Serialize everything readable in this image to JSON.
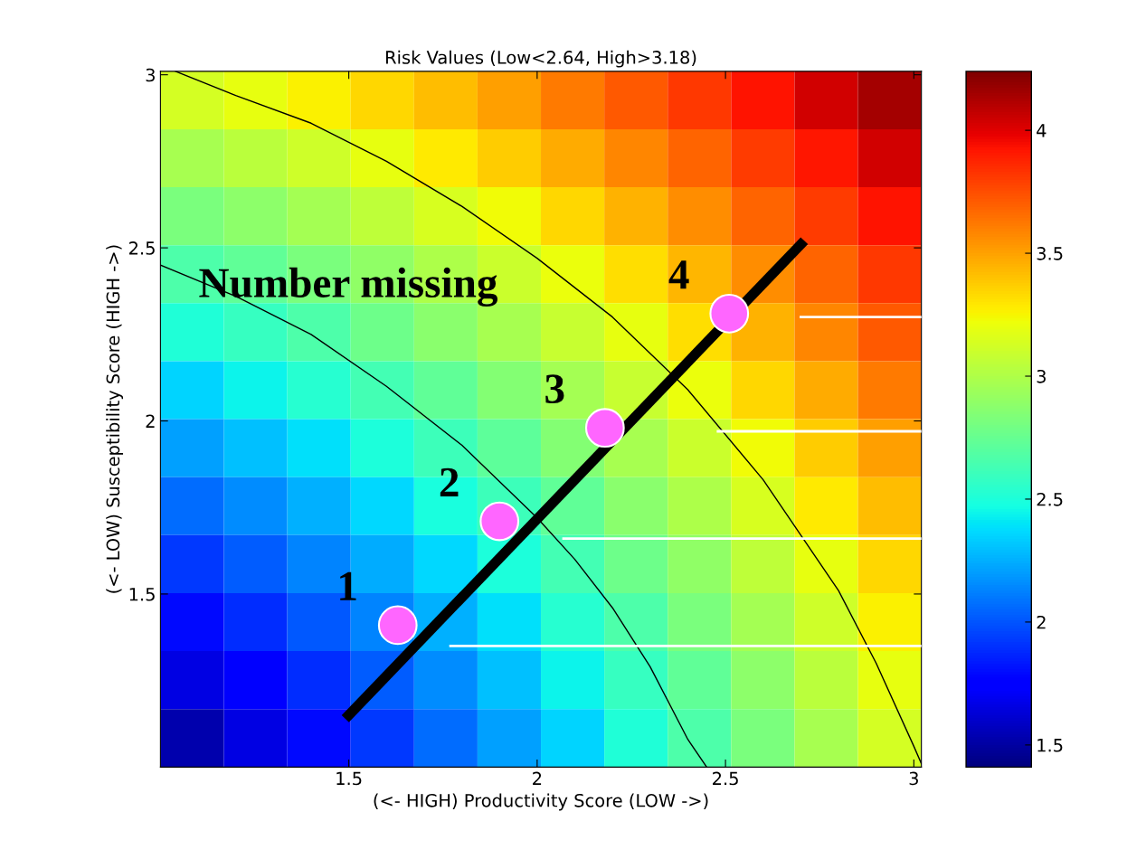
{
  "chart_data": {
    "type": "heatmap",
    "title": "Risk Values (Low<2.64, High>3.18)",
    "xlabel": "(<- HIGH) Productivity Score (LOW ->)",
    "ylabel": "(<- LOW) Susceptibility Score (HIGH ->)",
    "xlim": [
      1.0,
      3.02
    ],
    "ylim": [
      1.0,
      3.01
    ],
    "xticks": [
      1.5,
      2,
      2.5,
      3
    ],
    "yticks": [
      1.5,
      2,
      2.5,
      3
    ],
    "clim": [
      1.41,
      4.24
    ],
    "cticks": [
      1.5,
      2,
      2.5,
      3,
      3.5,
      4
    ],
    "cells": [
      [
        3.13,
        3.19,
        3.26,
        3.34,
        3.42,
        3.51,
        3.61,
        3.71,
        3.81,
        3.92,
        4.04,
        4.15
      ],
      [
        2.97,
        3.04,
        3.11,
        3.19,
        3.28,
        3.37,
        3.47,
        3.58,
        3.68,
        3.8,
        3.91,
        4.04
      ],
      [
        2.82,
        2.89,
        2.96,
        3.05,
        3.14,
        3.23,
        3.34,
        3.45,
        3.56,
        3.68,
        3.8,
        3.92
      ],
      [
        2.66,
        2.73,
        2.82,
        2.9,
        3.0,
        3.1,
        3.21,
        3.32,
        3.44,
        3.56,
        3.68,
        3.81
      ],
      [
        2.51,
        2.59,
        2.67,
        2.77,
        2.87,
        2.97,
        3.08,
        3.2,
        3.32,
        3.45,
        3.58,
        3.71
      ],
      [
        2.36,
        2.44,
        2.53,
        2.63,
        2.73,
        2.85,
        2.96,
        3.08,
        3.21,
        3.34,
        3.47,
        3.61
      ],
      [
        2.21,
        2.3,
        2.39,
        2.5,
        2.61,
        2.72,
        2.85,
        2.97,
        3.1,
        3.23,
        3.37,
        3.51
      ],
      [
        2.07,
        2.16,
        2.26,
        2.37,
        2.49,
        2.61,
        2.73,
        2.87,
        3.0,
        3.14,
        3.28,
        3.42
      ],
      [
        1.92,
        2.02,
        2.13,
        2.25,
        2.37,
        2.5,
        2.63,
        2.77,
        2.9,
        3.05,
        3.19,
        3.34
      ],
      [
        1.79,
        1.89,
        2.01,
        2.13,
        2.26,
        2.39,
        2.53,
        2.67,
        2.82,
        2.96,
        3.11,
        3.26
      ],
      [
        1.66,
        1.77,
        1.89,
        2.02,
        2.16,
        2.3,
        2.44,
        2.59,
        2.73,
        2.89,
        3.04,
        3.19
      ],
      [
        1.53,
        1.66,
        1.79,
        1.92,
        2.07,
        2.21,
        2.36,
        2.51,
        2.66,
        2.82,
        2.97,
        3.13
      ]
    ],
    "series": [
      {
        "type": "line",
        "color": "#000000",
        "x": [
          1.0,
          1.2,
          1.4,
          1.6,
          1.8,
          2.0,
          2.1,
          2.2,
          2.3,
          2.4,
          2.45
        ],
        "values": [
          2.45,
          2.36,
          2.25,
          2.1,
          1.93,
          1.72,
          1.6,
          1.46,
          1.29,
          1.08,
          1.0
        ]
      },
      {
        "type": "line",
        "color": "#000000",
        "x": [
          1.04,
          1.2,
          1.4,
          1.6,
          1.8,
          2.0,
          2.2,
          2.4,
          2.6,
          2.8,
          2.9,
          3.0,
          3.02
        ],
        "values": [
          3.01,
          2.94,
          2.86,
          2.75,
          2.62,
          2.47,
          2.3,
          2.09,
          1.83,
          1.51,
          1.3,
          1.06,
          1.01
        ]
      },
      {
        "type": "line",
        "color": "#ffffff",
        "x": [
          1.77,
          3.02
        ],
        "values": [
          1.35,
          1.35
        ]
      },
      {
        "type": "line",
        "color": "#ffffff",
        "x": [
          2.07,
          3.02
        ],
        "values": [
          1.66,
          1.66
        ]
      },
      {
        "type": "line",
        "color": "#ffffff",
        "x": [
          2.48,
          3.02
        ],
        "values": [
          1.97,
          1.97
        ]
      },
      {
        "type": "line",
        "color": "#ffffff",
        "x": [
          2.7,
          3.02
        ],
        "values": [
          2.3,
          2.3
        ]
      },
      {
        "type": "line",
        "color": "#000000",
        "x": [
          1.5,
          2.7
        ],
        "values": [
          1.15,
          2.51
        ]
      },
      {
        "type": "scatter",
        "marker": "circle",
        "color": "#ff66ff",
        "x": [
          1.63,
          1.9,
          2.18,
          2.51
        ],
        "values": [
          1.41,
          1.71,
          1.98,
          2.31
        ]
      }
    ],
    "annotations": [
      {
        "text": "1",
        "x": 1.63,
        "y": 1.41
      },
      {
        "text": "2",
        "x": 1.9,
        "y": 1.71
      },
      {
        "text": "3",
        "x": 2.18,
        "y": 1.98
      },
      {
        "text": "4",
        "x": 2.51,
        "y": 2.31
      },
      "Number missing"
    ]
  }
}
